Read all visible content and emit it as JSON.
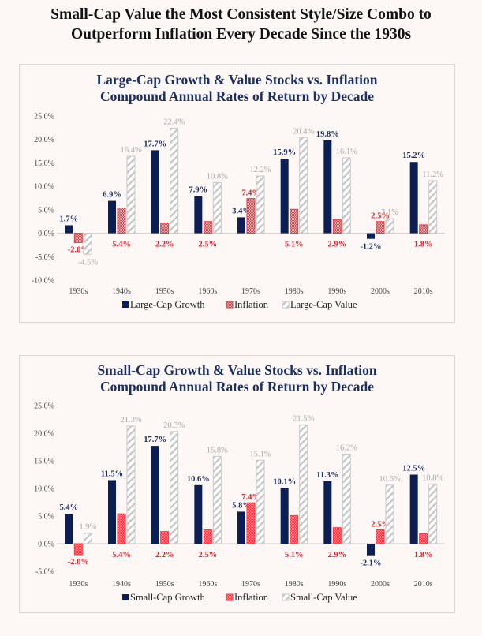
{
  "page": {
    "title_line1": "Small-Cap Value the Most Consistent Style/Size Combo to",
    "title_line2": "Outperform Inflation Every Decade Since the 1930s"
  },
  "colors": {
    "growth": "#0c1f55",
    "inflation": "#f03a46",
    "inflation_fill": "#f4a2a6",
    "value_stroke": "#c8c8c8",
    "growth_label": "#1b2f63",
    "inflation_label": "#ee1c25",
    "value_label": "#a9a9a9",
    "title": "#1b2f63"
  },
  "chart_data": [
    {
      "type": "bar",
      "title_line1": "Large-Cap Growth & Value Stocks vs. Inflation",
      "title_line2": "Compound Annual Rates of Return by Decade",
      "xlabel": "",
      "ylabel": "",
      "categories": [
        "1930s",
        "1940s",
        "1950s",
        "1960s",
        "1970s",
        "1980s",
        "1990s",
        "2000s",
        "2010s"
      ],
      "ylim": [
        -10,
        25
      ],
      "yticks": [
        25,
        20,
        15,
        10,
        5,
        0,
        -5,
        -10
      ],
      "ytick_labels": [
        "25.0%",
        "20.0%",
        "15.0%",
        "10.0%",
        "5.0%",
        "0.0%",
        "-5.0%",
        "-10.0%"
      ],
      "grid": false,
      "legend_position": "bottom",
      "series": [
        {
          "name": "Large-Cap Growth",
          "key": "growth",
          "values": [
            1.7,
            6.9,
            17.7,
            7.9,
            3.4,
            15.9,
            19.8,
            -1.2,
            15.2
          ],
          "labels": [
            "1.7%",
            "6.9%",
            "17.7%",
            "7.9%",
            "3.4%",
            "15.9%",
            "19.8%",
            "-1.2%",
            "15.2%"
          ]
        },
        {
          "name": "Inflation",
          "key": "inflation",
          "values": [
            -2.0,
            5.4,
            2.2,
            2.5,
            7.4,
            5.1,
            2.9,
            2.5,
            1.8
          ],
          "labels": [
            "-2.0%",
            "5.4%",
            "2.2%",
            "2.5%",
            "7.4%",
            "5.1%",
            "2.9%",
            "2.5%",
            "1.8%"
          ]
        },
        {
          "name": "Large-Cap Value",
          "key": "value",
          "values": [
            -4.5,
            16.4,
            22.4,
            10.8,
            12.2,
            20.4,
            16.1,
            3.1,
            11.2
          ],
          "labels": [
            "-4.5%",
            "16.4%",
            "22.4%",
            "10.8%",
            "12.2%",
            "20.4%",
            "16.1%",
            "3.1%",
            "11.2%"
          ]
        }
      ]
    },
    {
      "type": "bar",
      "title_line1": "Small-Cap Growth & Value Stocks vs. Inflation",
      "title_line2": "Compound Annual Rates of Return by Decade",
      "xlabel": "",
      "ylabel": "",
      "categories": [
        "1930s",
        "1940s",
        "1950s",
        "1960s",
        "1970s",
        "1980s",
        "1990s",
        "2000s",
        "2010s"
      ],
      "ylim": [
        -5,
        25
      ],
      "yticks": [
        25,
        20,
        15,
        10,
        5,
        0,
        -5
      ],
      "ytick_labels": [
        "25.0%",
        "20.0%",
        "15.0%",
        "10.0%",
        "5.0%",
        "0.0%",
        "-5.0%"
      ],
      "grid": false,
      "legend_position": "bottom",
      "series": [
        {
          "name": "Small-Cap Growth",
          "key": "growth",
          "values": [
            5.4,
            11.5,
            17.7,
            10.6,
            5.8,
            10.1,
            11.3,
            -2.1,
            12.5
          ],
          "labels": [
            "5.4%",
            "11.5%",
            "17.7%",
            "10.6%",
            "5.8%",
            "10.1%",
            "11.3%",
            "-2.1%",
            "12.5%"
          ]
        },
        {
          "name": "Inflation",
          "key": "inflation",
          "values": [
            -2.0,
            5.4,
            2.2,
            2.5,
            7.4,
            5.1,
            2.9,
            2.5,
            1.8
          ],
          "labels": [
            "-2.0%",
            "5.4%",
            "2.2%",
            "2.5%",
            "7.4%",
            "5.1%",
            "2.9%",
            "2.5%",
            "1.8%"
          ]
        },
        {
          "name": "Small-Cap Value",
          "key": "value",
          "values": [
            1.9,
            21.3,
            20.3,
            15.8,
            15.1,
            21.5,
            16.2,
            10.6,
            10.8
          ],
          "labels": [
            "1.9%",
            "21.3%",
            "20.3%",
            "15.8%",
            "15.1%",
            "21.5%",
            "16.2%",
            "10.6%",
            "10.8%"
          ]
        }
      ]
    }
  ]
}
